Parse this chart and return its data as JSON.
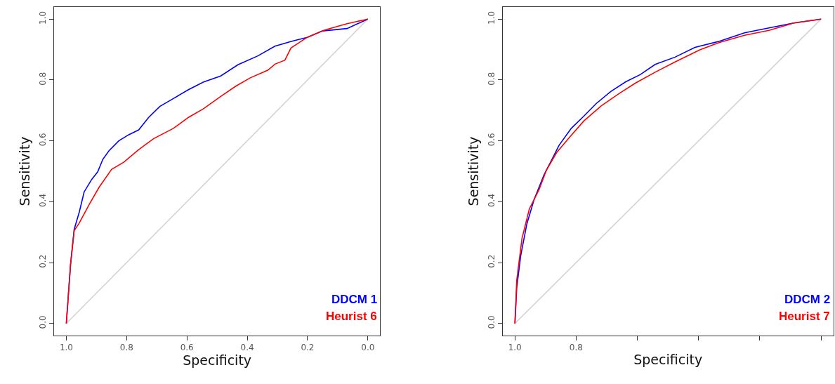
{
  "chart_data": [
    {
      "type": "line",
      "xlabel": "Specificity",
      "ylabel": "Sensitivity",
      "xlim": [
        1.04,
        -0.04
      ],
      "ylim": [
        -0.04,
        1.04
      ],
      "xticks": [
        {
          "value": 1.0,
          "label": "1.0"
        },
        {
          "value": 0.8,
          "label": "0.8"
        },
        {
          "value": 0.6,
          "label": "0.6"
        },
        {
          "value": 0.4,
          "label": "0.4"
        },
        {
          "value": 0.2,
          "label": "0.2"
        },
        {
          "value": 0.0,
          "label": "0.0"
        }
      ],
      "yticks": [
        {
          "value": 0.0,
          "label": "0.0"
        },
        {
          "value": 0.2,
          "label": "0.2"
        },
        {
          "value": 0.4,
          "label": "0.4"
        },
        {
          "value": 0.6,
          "label": "0.6"
        },
        {
          "value": 0.8,
          "label": "0.8"
        },
        {
          "value": 1.0,
          "label": "1.0"
        }
      ],
      "legend": false,
      "series": [
        {
          "color": "#d3d3d3",
          "x": [
            1.0,
            0.0
          ],
          "values": [
            0.0,
            1.0
          ]
        },
        {
          "name": "DDCM 1",
          "color": "#0000ff",
          "x": [
            1.0,
            0.986,
            0.974,
            0.957,
            0.941,
            0.916,
            0.896,
            0.879,
            0.859,
            0.826,
            0.793,
            0.76,
            0.727,
            0.69,
            0.645,
            0.595,
            0.546,
            0.488,
            0.431,
            0.365,
            0.308,
            0.25,
            0.201,
            0.151,
            0.069,
            0.0
          ],
          "values": [
            0.0,
            0.194,
            0.309,
            0.366,
            0.432,
            0.473,
            0.498,
            0.539,
            0.567,
            0.6,
            0.62,
            0.636,
            0.677,
            0.713,
            0.739,
            0.768,
            0.793,
            0.813,
            0.85,
            0.879,
            0.911,
            0.928,
            0.94,
            0.961,
            0.969,
            1.0
          ]
        },
        {
          "name": "Heurist 6",
          "color": "#ff0000",
          "x": [
            1.0,
            0.986,
            0.974,
            0.957,
            0.924,
            0.891,
            0.85,
            0.809,
            0.76,
            0.711,
            0.645,
            0.595,
            0.546,
            0.488,
            0.439,
            0.39,
            0.332,
            0.308,
            0.275,
            0.255,
            0.201,
            0.143,
            0.069,
            0.0
          ],
          "values": [
            0.0,
            0.194,
            0.305,
            0.33,
            0.391,
            0.448,
            0.506,
            0.53,
            0.571,
            0.607,
            0.641,
            0.677,
            0.705,
            0.746,
            0.779,
            0.807,
            0.832,
            0.852,
            0.865,
            0.905,
            0.94,
            0.964,
            0.985,
            1.0
          ]
        }
      ]
    },
    {
      "type": "line",
      "xlabel": "Specificity",
      "ylabel": "Sensitivity",
      "xlim": [
        1.04,
        -0.04
      ],
      "ylim": [
        -0.04,
        1.04
      ],
      "xticks": [
        {
          "value": 1.0,
          "label": "1.0"
        },
        {
          "value": 0.8,
          "label": "0.8"
        },
        {
          "value": 0.6,
          "label": null
        },
        {
          "value": 0.4,
          "label": null
        },
        {
          "value": 0.2,
          "label": null
        },
        {
          "value": 0.0,
          "label": null
        }
      ],
      "yticks": [
        {
          "value": 0.0,
          "label": "0.0"
        },
        {
          "value": 0.2,
          "label": "0.2"
        },
        {
          "value": 0.4,
          "label": "0.4"
        },
        {
          "value": 0.6,
          "label": "0.6"
        },
        {
          "value": 0.8,
          "label": "0.8"
        },
        {
          "value": 1.0,
          "label": "1.0"
        }
      ],
      "legend": false,
      "series": [
        {
          "color": "#d3d3d3",
          "x": [
            1.0,
            0.0
          ],
          "values": [
            0.0,
            1.0
          ]
        },
        {
          "name": "DDCM 2",
          "color": "#0000ff",
          "x": [
            1.0,
            0.994,
            0.981,
            0.961,
            0.937,
            0.905,
            0.88,
            0.856,
            0.816,
            0.775,
            0.735,
            0.687,
            0.638,
            0.59,
            0.542,
            0.477,
            0.412,
            0.332,
            0.25,
            0.17,
            0.089,
            0.0
          ],
          "values": [
            0.0,
            0.118,
            0.223,
            0.327,
            0.408,
            0.488,
            0.537,
            0.585,
            0.641,
            0.681,
            0.722,
            0.762,
            0.794,
            0.818,
            0.851,
            0.875,
            0.907,
            0.927,
            0.955,
            0.971,
            0.987,
            1.0
          ]
        },
        {
          "name": "Heurist 7",
          "color": "#ff0000",
          "x": [
            1.0,
            0.994,
            0.977,
            0.953,
            0.921,
            0.897,
            0.864,
            0.824,
            0.775,
            0.719,
            0.662,
            0.606,
            0.541,
            0.477,
            0.396,
            0.332,
            0.25,
            0.17,
            0.089,
            0.0
          ],
          "values": [
            0.0,
            0.142,
            0.279,
            0.376,
            0.44,
            0.504,
            0.561,
            0.609,
            0.665,
            0.714,
            0.754,
            0.79,
            0.826,
            0.859,
            0.899,
            0.923,
            0.947,
            0.963,
            0.987,
            1.0
          ]
        }
      ]
    }
  ]
}
